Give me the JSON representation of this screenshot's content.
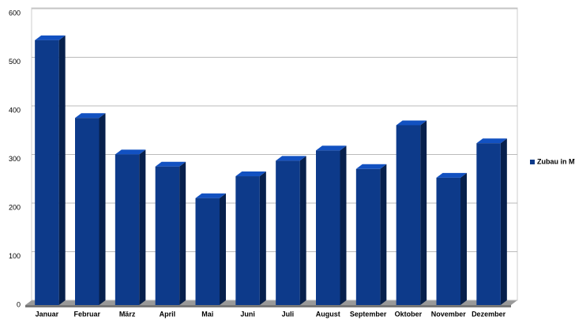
{
  "chart_data": {
    "type": "bar",
    "categories": [
      "Januar",
      "Februar",
      "März",
      "April",
      "Mai",
      "Juni",
      "Juli",
      "August",
      "September",
      "Oktober",
      "November",
      "Dezember"
    ],
    "series": [
      {
        "name": "Zubau in MW",
        "color": "#0d3a8a",
        "values": [
          545,
          385,
          310,
          285,
          220,
          265,
          297,
          318,
          280,
          370,
          262,
          333
        ]
      }
    ],
    "ylim": [
      0,
      600
    ],
    "yticks": [
      0,
      100,
      200,
      300,
      400,
      500,
      600
    ],
    "grid": true,
    "legend": "right"
  }
}
